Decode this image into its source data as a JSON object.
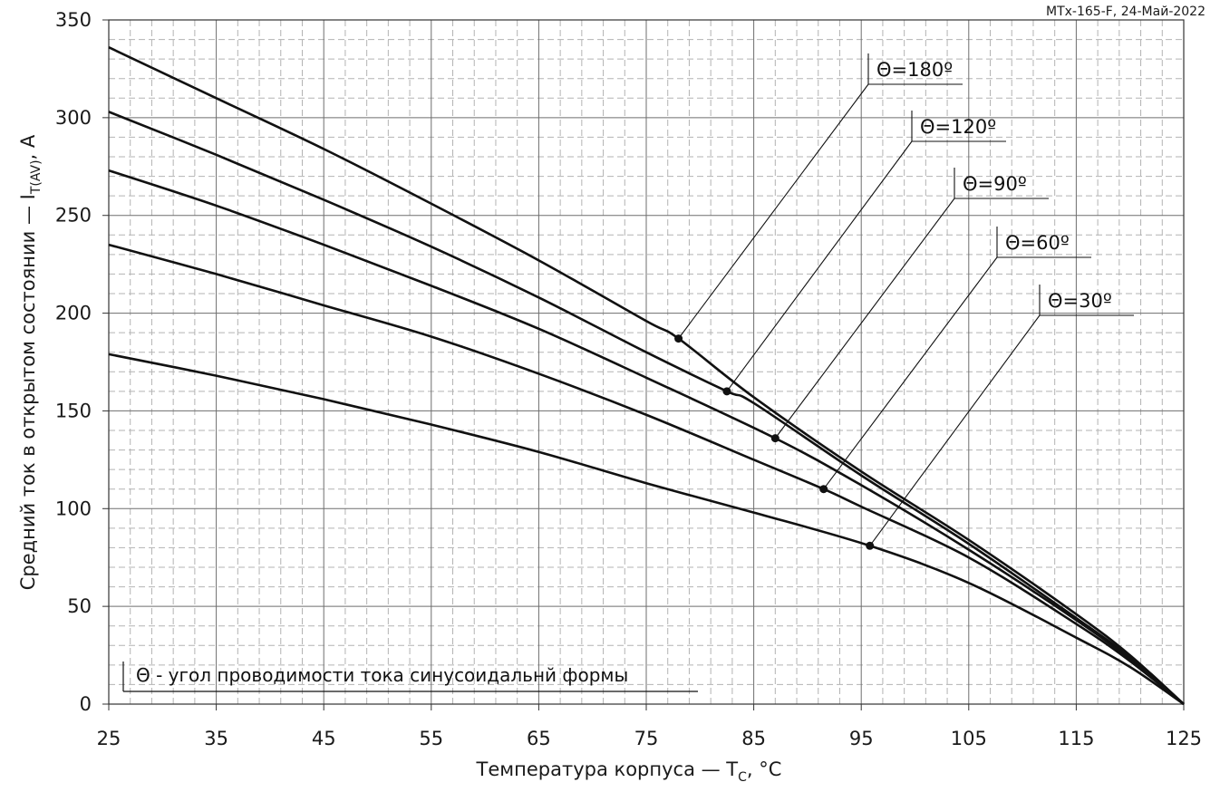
{
  "meta": {
    "code": "MTx-165-F, 24-Май-2022"
  },
  "note": {
    "text": "Θ - угол проводимости тока синусоидальнй формы"
  },
  "chart_data": {
    "type": "line",
    "title": "",
    "xlabel": {
      "main": "Температура корпуса — T",
      "sub": "C",
      "tail": ", °C"
    },
    "ylabel": {
      "main": "Средний ток в открытом состоянии — I",
      "sub": "T(AV)",
      "tail": ", А"
    },
    "xlim": [
      25,
      125
    ],
    "ylim": [
      0,
      350
    ],
    "xticks": [
      25,
      35,
      45,
      55,
      65,
      75,
      85,
      95,
      105,
      115,
      125
    ],
    "yticks": [
      0,
      50,
      100,
      150,
      200,
      250,
      300,
      350
    ],
    "grid": {
      "major": true,
      "minor": true
    },
    "series": [
      {
        "name": "Θ=180º",
        "points": [
          [
            25,
            336
          ],
          [
            35,
            310
          ],
          [
            45,
            284
          ],
          [
            55,
            256
          ],
          [
            65,
            227
          ],
          [
            75,
            196
          ],
          [
            78,
            187
          ],
          [
            85,
            157
          ],
          [
            95,
            119
          ],
          [
            105,
            84
          ],
          [
            115,
            46
          ],
          [
            120,
            25
          ],
          [
            125,
            0
          ]
        ],
        "marker": [
          78,
          187
        ]
      },
      {
        "name": "Θ=120º",
        "points": [
          [
            25,
            303
          ],
          [
            35,
            281
          ],
          [
            45,
            258
          ],
          [
            55,
            234
          ],
          [
            65,
            208
          ],
          [
            75,
            180
          ],
          [
            82.5,
            160
          ],
          [
            85,
            154
          ],
          [
            95,
            117
          ],
          [
            105,
            82
          ],
          [
            115,
            44
          ],
          [
            120,
            24
          ],
          [
            125,
            0
          ]
        ],
        "marker": [
          82.5,
          160
        ]
      },
      {
        "name": "Θ=90º",
        "points": [
          [
            25,
            273
          ],
          [
            35,
            255
          ],
          [
            45,
            235
          ],
          [
            55,
            214
          ],
          [
            65,
            192
          ],
          [
            75,
            167
          ],
          [
            87,
            136
          ],
          [
            95,
            112
          ],
          [
            105,
            79
          ],
          [
            115,
            43
          ],
          [
            120,
            23
          ],
          [
            125,
            0
          ]
        ],
        "marker": [
          87,
          136
        ]
      },
      {
        "name": "Θ=60º",
        "points": [
          [
            25,
            235
          ],
          [
            35,
            220
          ],
          [
            45,
            204
          ],
          [
            55,
            188
          ],
          [
            65,
            169
          ],
          [
            75,
            148
          ],
          [
            85,
            125
          ],
          [
            91.5,
            110
          ],
          [
            95,
            101
          ],
          [
            105,
            75
          ],
          [
            115,
            41
          ],
          [
            120,
            22
          ],
          [
            125,
            0
          ]
        ],
        "marker": [
          91.5,
          110
        ]
      },
      {
        "name": "Θ=30º",
        "points": [
          [
            25,
            179
          ],
          [
            35,
            168
          ],
          [
            45,
            156
          ],
          [
            55,
            143
          ],
          [
            65,
            129
          ],
          [
            75,
            113
          ],
          [
            85,
            98
          ],
          [
            95.8,
            81
          ],
          [
            105,
            62
          ],
          [
            115,
            34
          ],
          [
            120,
            19
          ],
          [
            125,
            0
          ]
        ],
        "marker": [
          95.8,
          81
        ]
      }
    ],
    "labels": [
      "Θ=180º",
      "Θ=120º",
      "Θ=90º",
      "Θ=60º",
      "Θ=30º"
    ]
  }
}
